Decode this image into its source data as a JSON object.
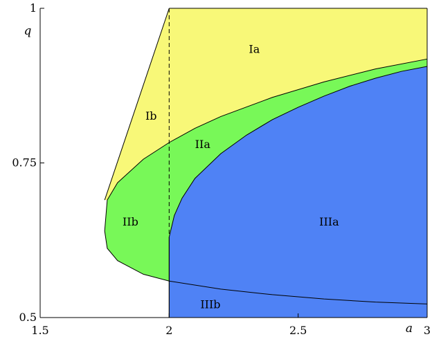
{
  "chart_data": {
    "type": "area",
    "xlim": [
      1.5,
      3
    ],
    "ylim": [
      0.5,
      1
    ],
    "xlabel": "a",
    "ylabel": "q",
    "x_ticks": [
      {
        "value": 1.5,
        "label": "1.5"
      },
      {
        "value": 2,
        "label": "2"
      },
      {
        "value": 2.5,
        "label": "2.5"
      },
      {
        "value": 3,
        "label": "3"
      }
    ],
    "y_ticks": [
      {
        "value": 0.5,
        "label": "0.5"
      },
      {
        "value": 0.75,
        "label": "0.75"
      },
      {
        "value": 1,
        "label": "1"
      }
    ],
    "grid": false,
    "colors": {
      "yellow": "#f8f878",
      "green": "#78f858",
      "blue": "#4f82f5"
    },
    "regions": [
      {
        "label": "Ia",
        "color": "yellow",
        "label_at": [
          2.33,
          0.928
        ]
      },
      {
        "label": "Ib",
        "color": "yellow",
        "label_at": [
          1.93,
          0.82
        ]
      },
      {
        "label": "IIa",
        "color": "green",
        "label_at": [
          2.13,
          0.774
        ]
      },
      {
        "label": "IIb",
        "color": "green",
        "label_at": [
          1.85,
          0.649
        ]
      },
      {
        "label": "IIIa",
        "color": "blue",
        "label_at": [
          2.62,
          0.649
        ]
      },
      {
        "label": "IIIb",
        "color": "blue",
        "label_at": [
          2.16,
          0.515
        ]
      }
    ],
    "curves": {
      "outer_green_boundary": {
        "x": [
          3.0,
          2.8,
          2.6,
          2.4,
          2.2,
          2.1,
          2.0,
          1.9,
          1.8,
          1.76,
          1.75,
          1.76,
          1.8,
          1.9,
          2.0,
          2.2,
          2.4,
          2.6,
          2.8,
          3.0
        ],
        "y": [
          0.918,
          0.902,
          0.881,
          0.856,
          0.825,
          0.806,
          0.783,
          0.756,
          0.718,
          0.69,
          0.64,
          0.612,
          0.592,
          0.57,
          0.559,
          0.546,
          0.537,
          0.53,
          0.525,
          0.522
        ]
      },
      "inner_blue_boundary": {
        "x": [
          2.0,
          2.02,
          2.05,
          2.1,
          2.2,
          2.3,
          2.4,
          2.5,
          2.6,
          2.7,
          2.8,
          2.9,
          3.0
        ],
        "y": [
          0.63,
          0.665,
          0.693,
          0.725,
          0.765,
          0.795,
          0.82,
          0.84,
          0.858,
          0.874,
          0.887,
          0.898,
          0.906
        ]
      },
      "ib_line": {
        "x": [
          1.75,
          2.0
        ],
        "y": [
          0.69,
          1.0
        ]
      },
      "blue_bottom": 0.5,
      "dashed_x": 2.0
    }
  }
}
